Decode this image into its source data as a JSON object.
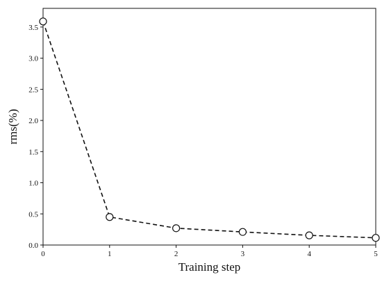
{
  "chart_data": {
    "type": "line",
    "title": "",
    "xlabel": "Training step",
    "ylabel": "rms(%)",
    "x": [
      0,
      1,
      2,
      3,
      4,
      5
    ],
    "series": [
      {
        "values": [
          3.59,
          0.45,
          0.27,
          0.21,
          0.155,
          0.115
        ]
      }
    ],
    "xlim": [
      0,
      5
    ],
    "ylim": [
      0,
      3.8
    ],
    "xticks": [
      "0",
      "1",
      "2",
      "3",
      "4",
      "5"
    ],
    "yticks": [
      "0.0",
      "0.5",
      "1.0",
      "1.5",
      "2.0",
      "2.5",
      "3.0",
      "3.5"
    ],
    "grid": false,
    "line_style": "dashed",
    "marker": "open-circle",
    "colors": {
      "line": "#111111",
      "axis": "#111111"
    }
  }
}
